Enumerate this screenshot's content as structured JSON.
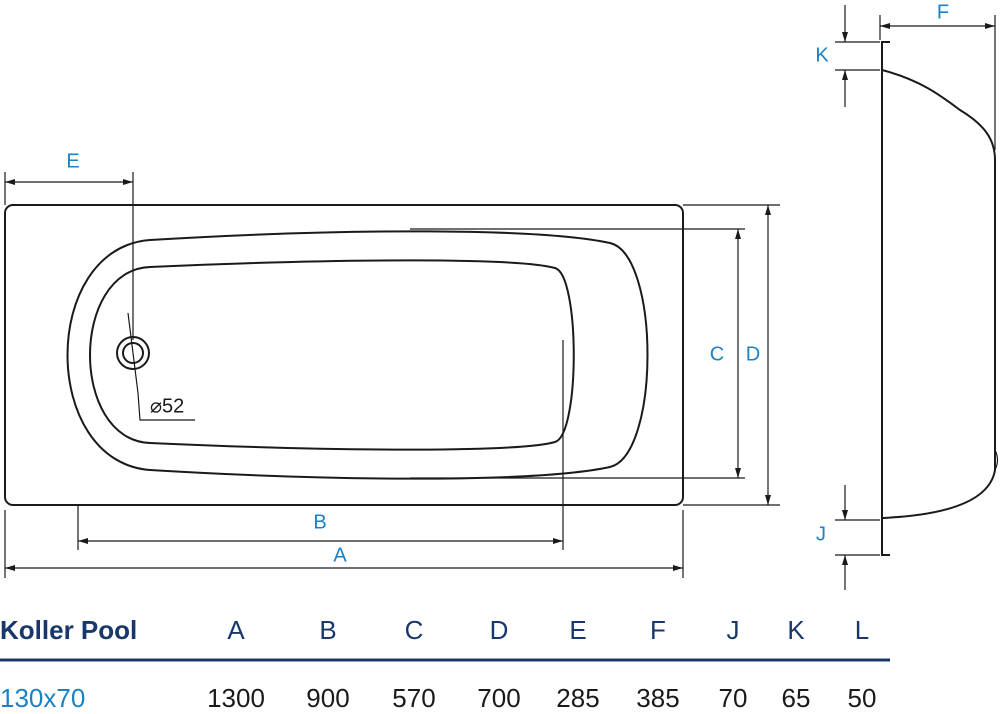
{
  "drawing": {
    "dimension_labels": [
      "E",
      "B",
      "A",
      "C",
      "D",
      "F",
      "K",
      "J"
    ],
    "drain_label": "⌀52"
  },
  "table": {
    "columns": [
      "Koller Pool",
      "A",
      "B",
      "C",
      "D",
      "E",
      "F",
      "J",
      "K",
      "L"
    ],
    "rows": [
      [
        "130x70",
        1300,
        900,
        570,
        700,
        285,
        385,
        70,
        65,
        50
      ]
    ]
  }
}
